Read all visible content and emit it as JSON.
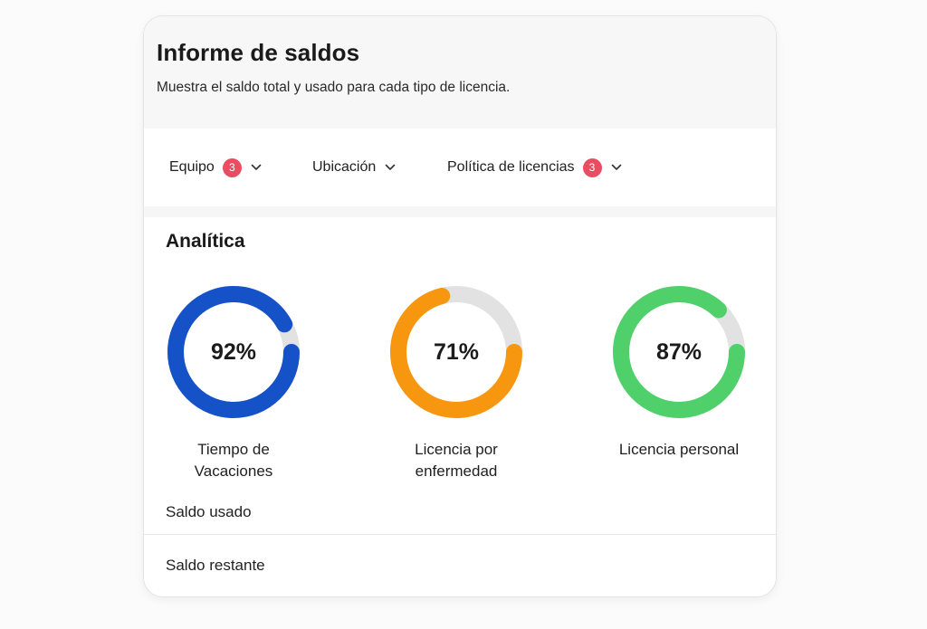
{
  "report": {
    "title": "Informe de saldos",
    "subtitle": "Muestra el saldo total y usado para cada tipo de licencia."
  },
  "filters": [
    {
      "label": "Equipo",
      "badge": "3",
      "icon": "chevron-down-icon"
    },
    {
      "label": "Ubicación",
      "badge": null,
      "icon": "chevron-down-icon"
    },
    {
      "label": "Política de licencias",
      "badge": "3",
      "icon": "chevron-down-icon"
    }
  ],
  "analytics": {
    "title": "Analítica",
    "donuts": [
      {
        "value_text": "92%",
        "percent": 92,
        "label": "Tiempo de\nVacaciones",
        "color": "#1652c7"
      },
      {
        "value_text": "71%",
        "percent": 71,
        "label": "Licencia por\nenfermedad",
        "color": "#f7960f"
      },
      {
        "value_text": "87%",
        "percent": 87,
        "label": "Licencia personal",
        "color": "#4fd06b"
      }
    ],
    "track_color": "#e2e2e2"
  },
  "rows": [
    {
      "label": "Saldo usado"
    },
    {
      "label": "Saldo restante"
    }
  ],
  "colors": {
    "badge": "#ea4d61"
  }
}
